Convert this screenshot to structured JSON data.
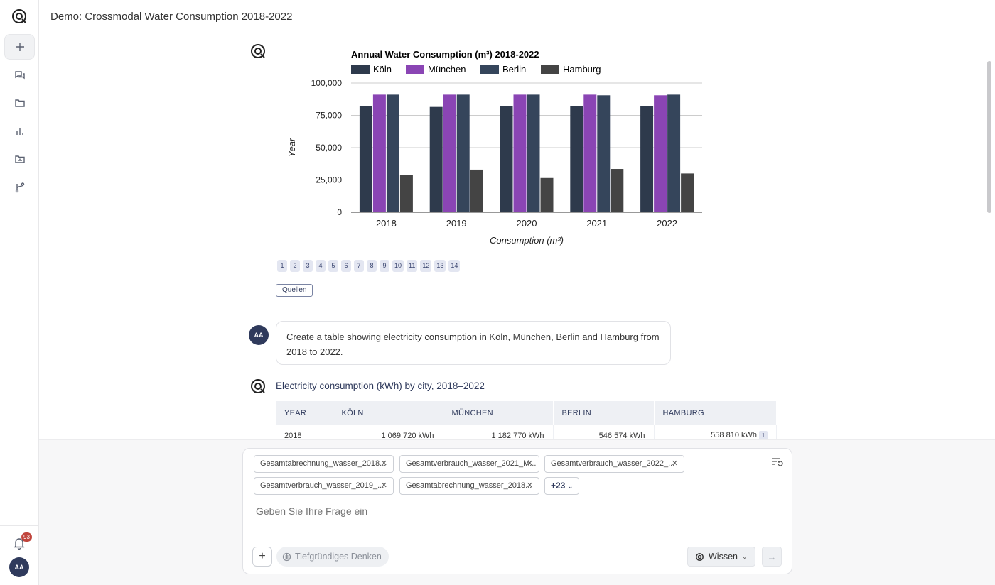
{
  "app": {
    "title": "Demo: Crossmodal Water Consumption 2018-2022"
  },
  "rail": {
    "items": [
      {
        "name": "new-chat",
        "icon": "plus-icon"
      },
      {
        "name": "chats",
        "icon": "chat-icon"
      },
      {
        "name": "folders",
        "icon": "folder-icon"
      },
      {
        "name": "analytics",
        "icon": "bar-chart-icon"
      },
      {
        "name": "data",
        "icon": "data-folder-icon"
      },
      {
        "name": "workflows",
        "icon": "branch-icon"
      }
    ],
    "notifications_count": "93",
    "avatar_initials": "AA"
  },
  "chart_data": {
    "type": "bar",
    "title": "Annual Water Consumption (m³) 2018-2022",
    "xlabel": "Consumption (m³)",
    "ylabel": "Year",
    "categories": [
      "2018",
      "2019",
      "2020",
      "2021",
      "2022"
    ],
    "ylim": [
      0,
      100000
    ],
    "yticks": [
      "0",
      "25,000",
      "50,000",
      "75,000",
      "100,000"
    ],
    "series": [
      {
        "name": "Köln",
        "color": "#2e3a4c",
        "values": [
          82000,
          81500,
          82000,
          82000,
          82000
        ]
      },
      {
        "name": "München",
        "color": "#8a45b4",
        "values": [
          91000,
          91000,
          91000,
          91000,
          90500
        ]
      },
      {
        "name": "Berlin",
        "color": "#35455b",
        "values": [
          91000,
          91000,
          91000,
          90500,
          91000
        ]
      },
      {
        "name": "Hamburg",
        "color": "#444444",
        "values": [
          29000,
          33000,
          26500,
          33500,
          30000
        ]
      }
    ],
    "legend": "top"
  },
  "citations": [
    "1",
    "2",
    "3",
    "4",
    "5",
    "6",
    "7",
    "8",
    "9",
    "10",
    "11",
    "12",
    "13",
    "14"
  ],
  "sources_label": "Quellen",
  "user_message": {
    "avatar": "AA",
    "text": "Create a table showing electricity consumption in Köln, München, Berlin and Hamburg from 2018 to 2022."
  },
  "response": {
    "title": "Electricity consumption (kWh) by city, 2018–2022",
    "table": {
      "headers": [
        "YEAR",
        "KÖLN",
        "MÜNCHEN",
        "BERLIN",
        "HAMBURG"
      ],
      "rows": [
        {
          "year": "2018",
          "koeln": "1 069 720 kWh",
          "muenchen": "1 182 770 kWh",
          "berlin": "546 574 kWh",
          "hamburg": "558 810 kWh",
          "cite": "1"
        }
      ]
    }
  },
  "composer": {
    "chips": [
      "Gesamtabrechnung_wasser_2018...",
      "Gesamtverbrauch_wasser_2021_M...",
      "Gesamtverbrauch_wasser_2022_...",
      "Gesamtverbrauch_wasser_2019_...",
      "Gesamtabrechnung_wasser_2018..."
    ],
    "more_label": "+23",
    "placeholder": "Geben Sie Ihre Frage ein",
    "think_label": "Tiefgründiges Denken",
    "mode_label": "Wissen"
  }
}
